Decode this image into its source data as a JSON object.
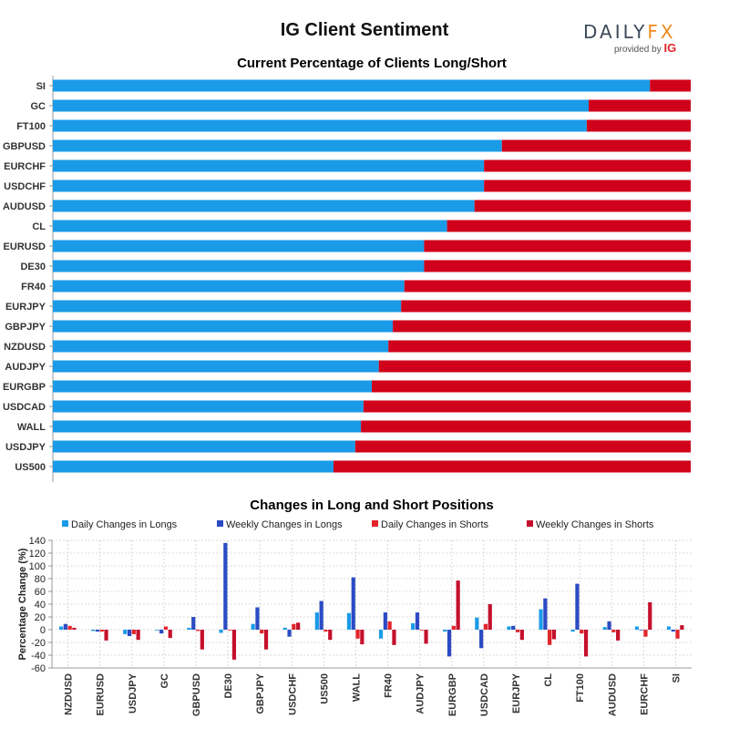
{
  "header": {
    "title": "IG Client Sentiment",
    "logo_main_a": "DAILY",
    "logo_main_b": "FX",
    "logo_sub_a": "provided by",
    "logo_sub_b": "IG"
  },
  "colors": {
    "long": "#1a9be8",
    "short": "#d0021b",
    "daily_longs": "#1a9be8",
    "weekly_longs": "#2b4bc4",
    "daily_shorts": "#e3242b",
    "weekly_shorts": "#c5102c"
  },
  "chart_data": [
    {
      "type": "bar",
      "orientation": "horizontal-stacked",
      "title": "Current Percentage of Clients Long/Short",
      "categories": [
        "SI",
        "GC",
        "FT100",
        "GBPUSD",
        "EURCHF",
        "USDCHF",
        "AUDUSD",
        "CL",
        "EURUSD",
        "DE30",
        "FR40",
        "EURJPY",
        "GBPJPY",
        "NZDUSD",
        "AUDJPY",
        "EURGBP",
        "USDCAD",
        "WALL",
        "USDJPY",
        "US500"
      ],
      "series": [
        {
          "values": [
            93.6,
            84.0,
            83.7,
            70.4,
            67.6,
            67.6,
            66.1,
            61.8,
            58.2,
            58.2,
            55.1,
            54.6,
            53.3,
            52.6,
            51.1,
            50.0,
            48.7,
            48.3,
            47.4,
            44.0
          ]
        },
        {
          "values": [
            6.4,
            16.0,
            16.3,
            29.6,
            32.4,
            32.4,
            33.9,
            38.2,
            41.8,
            41.8,
            44.9,
            45.4,
            46.7,
            47.4,
            48.9,
            50.0,
            51.3,
            51.7,
            52.6,
            56.0
          ]
        }
      ],
      "xlim": [
        0,
        100
      ]
    },
    {
      "type": "bar",
      "title": "Changes in Long and Short Positions",
      "ylabel": "Percentage Change (%)",
      "ylim": [
        -60,
        140
      ],
      "yticks": [
        -60,
        -40,
        -20,
        0,
        20,
        40,
        60,
        80,
        100,
        120,
        140
      ],
      "grid": true,
      "legend": "top",
      "categories": [
        "NZDUSD",
        "EURUSD",
        "USDJPY",
        "GC",
        "GBPUSD",
        "DE30",
        "GBPJPY",
        "USDCHF",
        "US500",
        "WALL",
        "FR40",
        "AUDJPY",
        "EURGBP",
        "USDCAD",
        "EURJPY",
        "CL",
        "FT100",
        "AUDUSD",
        "EURCHF",
        "SI"
      ],
      "series": [
        {
          "name": "Daily Changes in Longs",
          "values": [
            5,
            -2,
            -7,
            0,
            3,
            -5,
            9,
            3,
            27,
            26,
            -14,
            10,
            -3,
            19,
            5,
            32,
            -3,
            4,
            5,
            5
          ]
        },
        {
          "name": "Weekly Changes in Longs",
          "values": [
            9,
            -3,
            -10,
            -6,
            20,
            136,
            35,
            -11,
            45,
            82,
            27,
            27,
            -42,
            -29,
            6,
            49,
            72,
            13,
            0,
            -3
          ]
        },
        {
          "name": "Daily Changes in Shorts",
          "values": [
            6,
            -3,
            -7,
            5,
            -2,
            0,
            -6,
            9,
            -3,
            -14,
            13,
            0,
            6,
            9,
            -4,
            -24,
            -6,
            -4,
            -11,
            -14
          ]
        },
        {
          "name": "Weekly Changes in Shorts",
          "values": [
            3,
            -17,
            -16,
            -13,
            -31,
            -47,
            -31,
            11,
            -16,
            -23,
            -24,
            -22,
            77,
            40,
            -16,
            -15,
            -42,
            -17,
            43,
            7
          ]
        }
      ]
    }
  ]
}
